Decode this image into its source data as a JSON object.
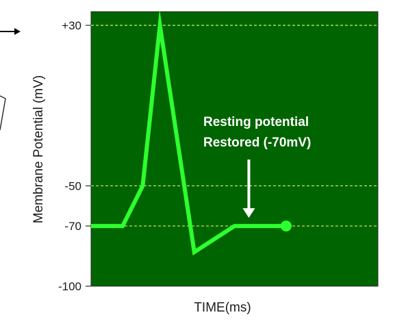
{
  "chart_data": {
    "type": "line",
    "title": "",
    "xlabel": "TIME(ms)",
    "ylabel": "Membrane Potential (mV)",
    "ylim": [
      -100,
      30
    ],
    "yticks": [
      {
        "value": 30,
        "label": "+30"
      },
      {
        "value": -50,
        "label": "-50"
      },
      {
        "value": -70,
        "label": "-70"
      },
      {
        "value": -100,
        "label": "-100"
      }
    ],
    "gridlines_mV": [
      30,
      -50,
      -70
    ],
    "xlim": [
      0,
      10
    ],
    "series": [
      {
        "x": [
          0,
          1.1,
          1.8,
          2.4,
          3.6,
          5.0,
          6.8
        ],
        "y": [
          -70,
          -70,
          -50,
          30,
          -83,
          -70,
          -70
        ]
      }
    ],
    "annotation": {
      "lines": [
        "Resting potential",
        "Restored (-70mV)"
      ],
      "arrow_target": {
        "x": 5.5,
        "y": -70
      }
    },
    "colors": {
      "plot_background": "#006400",
      "trace": "#2eff2e",
      "gridline": "#d8f060",
      "annotation": "#ffffff"
    }
  }
}
